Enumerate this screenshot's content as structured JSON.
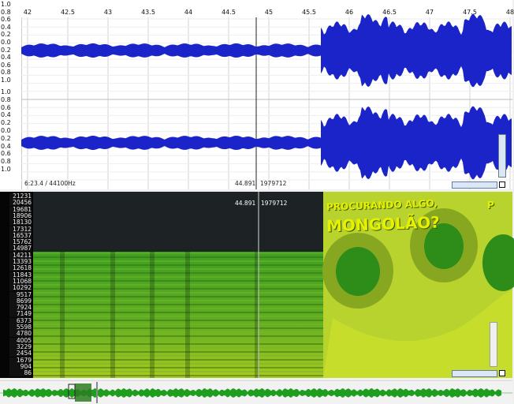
{
  "waveform": {
    "amplitude_labels": [
      "1.0",
      "0.8",
      "0.6",
      "0.4",
      "0.2",
      "0.0",
      "0.2",
      "0.4",
      "0.6",
      "0.8",
      "1.0",
      "1.0",
      "0.8",
      "0.6",
      "0.4",
      "0.2",
      "0.0",
      "0.2",
      "0.4",
      "0.6",
      "0.8",
      "1.0"
    ],
    "time_labels": [
      "42",
      "42.5",
      "43",
      "43.5",
      "44",
      "44.5",
      "45",
      "45.5",
      "46",
      "46.5",
      "47",
      "47.5",
      "48"
    ],
    "status_left": "6:23.4 / 44100Hz",
    "cursor_time": "44.891",
    "cursor_sample": "1979712",
    "colors": {
      "waveform": "#1b24c8",
      "background": "#ffffff",
      "grid": "#cfcfcf"
    }
  },
  "spectrogram": {
    "frequency_labels": [
      "21231",
      "20456",
      "19681",
      "18906",
      "18130",
      "17312",
      "16537",
      "15762",
      "14987",
      "14211",
      "13393",
      "12618",
      "11843",
      "11068",
      "10292",
      "9517",
      "8699",
      "7924",
      "7149",
      "6373",
      "5598",
      "4780",
      "4005",
      "3229",
      "2454",
      "1679",
      "904",
      "86"
    ],
    "cursor_time": "44.891",
    "cursor_sample": "1979712",
    "hidden_image_text_line1": "PROCURANDO ALGO,",
    "hidden_image_text_line2": "MONGOLÃO?",
    "colors": {
      "spectrum": "#49a314",
      "dark": "#1d2325",
      "image": "#b8d32d"
    }
  },
  "overview": {
    "colors": {
      "waveform": "#1e9d1e",
      "selection": "#2c7e20"
    }
  }
}
